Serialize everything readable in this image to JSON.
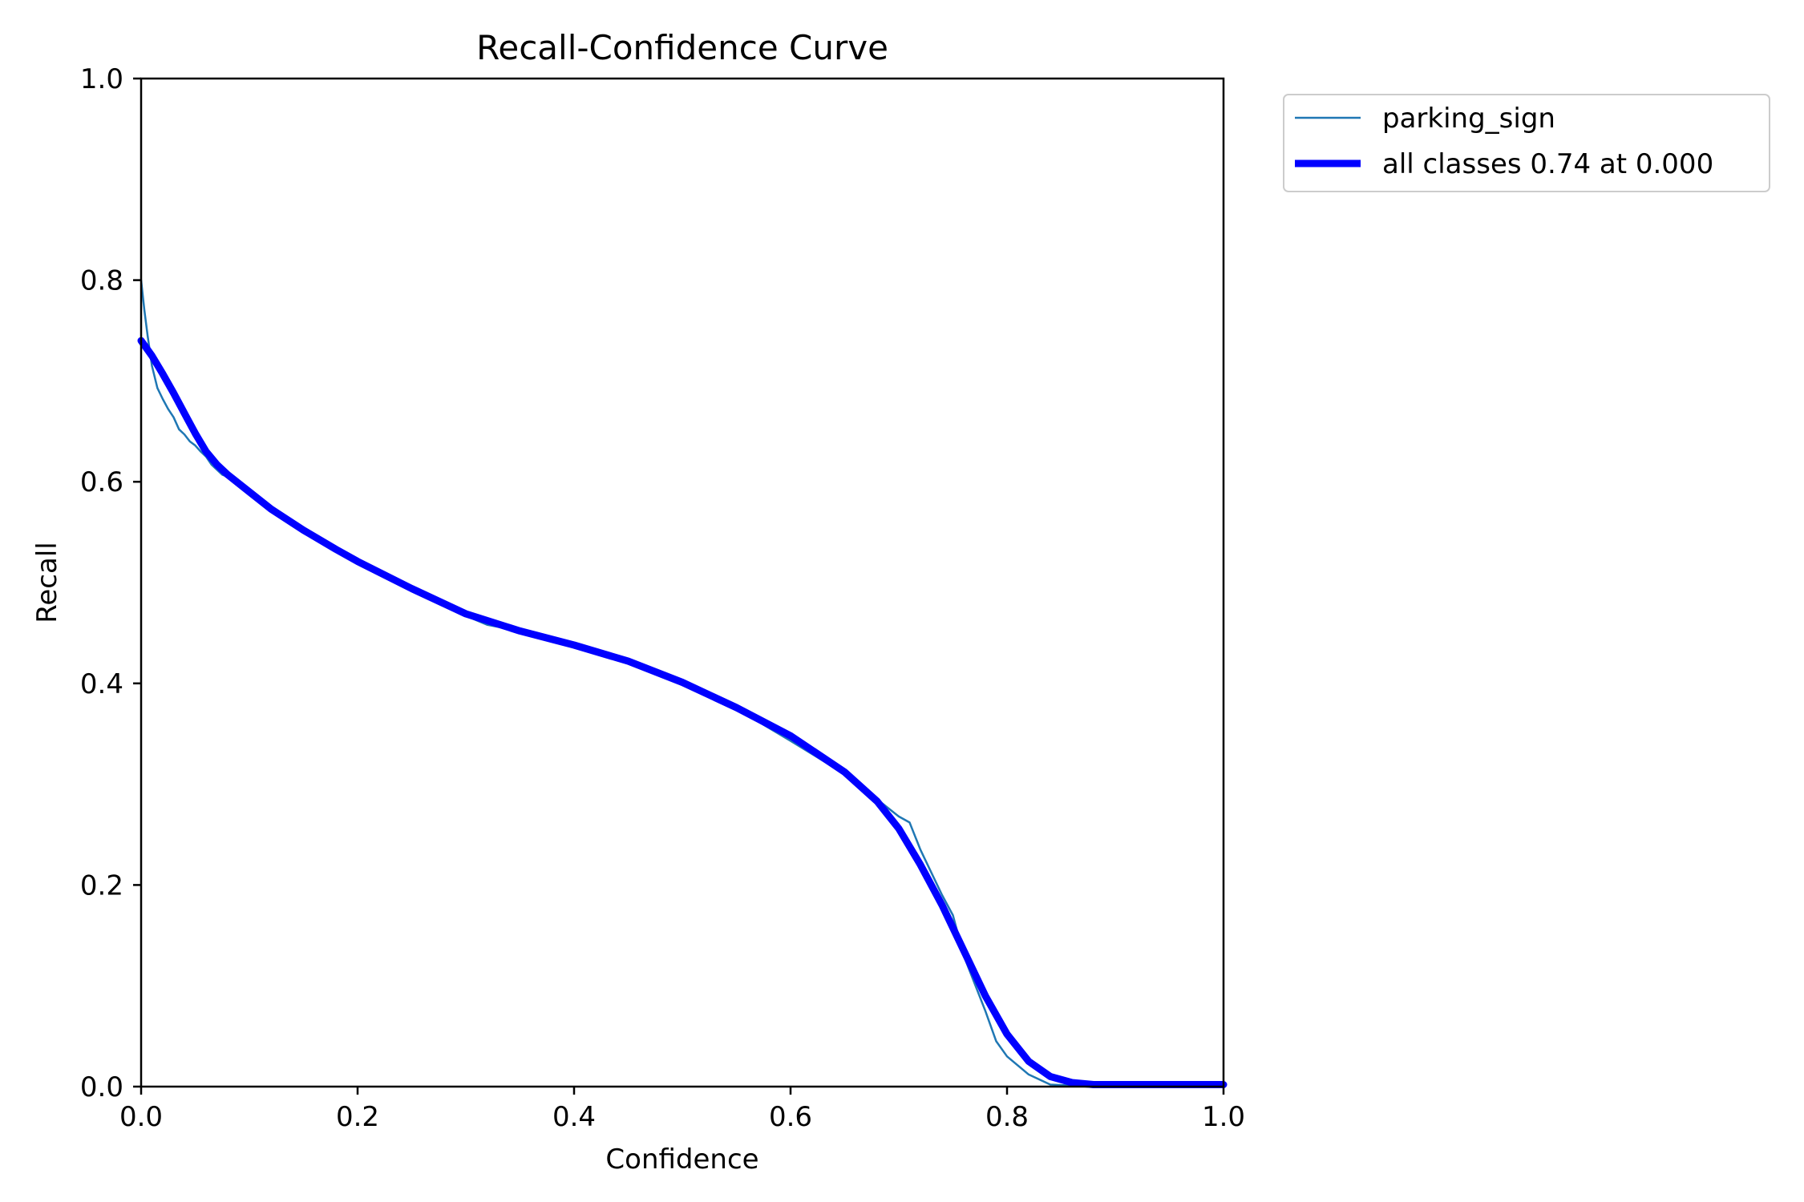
{
  "chart_data": {
    "type": "line",
    "title": "Recall-Confidence Curve",
    "xlabel": "Confidence",
    "ylabel": "Recall",
    "xlim": [
      0,
      1
    ],
    "ylim": [
      0,
      1
    ],
    "x_ticks": [
      "0.0",
      "0.2",
      "0.4",
      "0.6",
      "0.8",
      "1.0"
    ],
    "y_ticks": [
      "0.0",
      "0.2",
      "0.4",
      "0.6",
      "0.8",
      "1.0"
    ],
    "grid": false,
    "legend_position": "outside-top-right",
    "series": [
      {
        "name": "parking_sign",
        "color": "#1f77b4",
        "x": [
          0.0,
          0.003,
          0.006,
          0.01,
          0.015,
          0.02,
          0.025,
          0.03,
          0.035,
          0.04,
          0.045,
          0.05,
          0.055,
          0.06,
          0.065,
          0.07,
          0.075,
          0.08,
          0.085,
          0.09,
          0.1,
          0.12,
          0.15,
          0.18,
          0.2,
          0.25,
          0.3,
          0.32,
          0.35,
          0.4,
          0.45,
          0.47,
          0.5,
          0.55,
          0.6,
          0.65,
          0.68,
          0.7,
          0.71,
          0.72,
          0.74,
          0.75,
          0.76,
          0.78,
          0.79,
          0.8,
          0.82,
          0.84,
          0.86,
          0.88,
          0.9,
          0.95,
          1.0
        ],
        "y": [
          0.8,
          0.77,
          0.745,
          0.715,
          0.693,
          0.682,
          0.672,
          0.664,
          0.652,
          0.647,
          0.64,
          0.636,
          0.63,
          0.625,
          0.617,
          0.612,
          0.607,
          0.605,
          0.603,
          0.598,
          0.592,
          0.575,
          0.553,
          0.533,
          0.52,
          0.492,
          0.467,
          0.458,
          0.452,
          0.437,
          0.42,
          0.413,
          0.4,
          0.375,
          0.343,
          0.31,
          0.285,
          0.268,
          0.262,
          0.235,
          0.19,
          0.17,
          0.13,
          0.075,
          0.045,
          0.03,
          0.012,
          0.002,
          0.001,
          0.001,
          0.001,
          0.001,
          0.001
        ]
      },
      {
        "name": "all classes 0.74 at 0.000",
        "color": "#0000ff",
        "x": [
          0.0,
          0.01,
          0.02,
          0.03,
          0.04,
          0.05,
          0.06,
          0.07,
          0.08,
          0.1,
          0.12,
          0.15,
          0.18,
          0.2,
          0.25,
          0.3,
          0.35,
          0.4,
          0.45,
          0.5,
          0.55,
          0.6,
          0.65,
          0.68,
          0.7,
          0.72,
          0.74,
          0.76,
          0.78,
          0.8,
          0.82,
          0.84,
          0.86,
          0.88,
          0.9,
          0.95,
          1.0
        ],
        "y": [
          0.74,
          0.725,
          0.707,
          0.688,
          0.668,
          0.648,
          0.63,
          0.617,
          0.607,
          0.59,
          0.573,
          0.552,
          0.533,
          0.521,
          0.494,
          0.469,
          0.452,
          0.438,
          0.422,
          0.401,
          0.376,
          0.348,
          0.312,
          0.283,
          0.256,
          0.22,
          0.18,
          0.135,
          0.09,
          0.052,
          0.025,
          0.01,
          0.004,
          0.002,
          0.002,
          0.002,
          0.002
        ]
      }
    ]
  }
}
